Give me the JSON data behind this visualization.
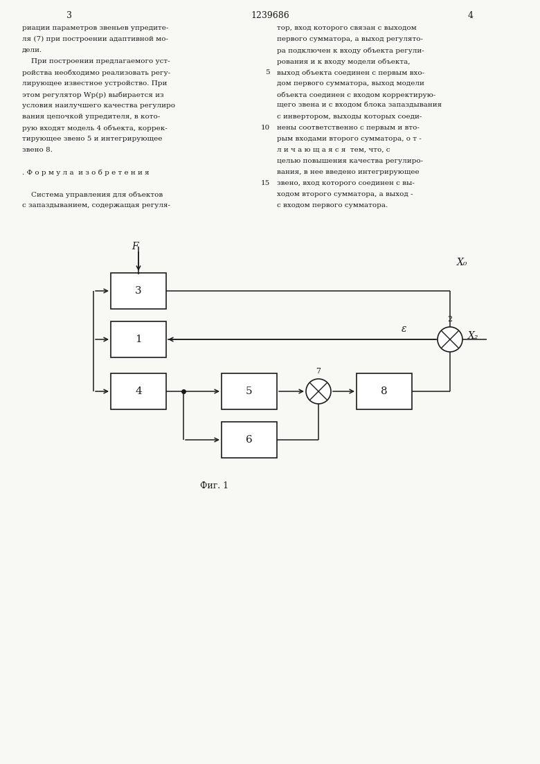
{
  "page_number_left": "3",
  "page_number_center": "1239686",
  "page_number_right": "4",
  "text_left": [
    "риации параметров звеньев упредите-",
    "ля (7) при построении адаптивной мо-",
    "дели.",
    "    При построении предлагаемого уст-",
    "ройства необходимо реализовать регу-",
    "лирующее известное устройство. При",
    "этом регулятор Wр(р) выбирается из",
    "условия наилучшего качества регулиро",
    "вания цепочкой упредителя, в кото-",
    "рую входят модель 4 объекта, коррек-",
    "тирующее звено 5 и интегрирующее",
    "звено 8.",
    "",
    ". Ф о р м у л а  и з о б р е т е н и я",
    "",
    "    Система управления для объектов",
    "с запаздыванием, содержащая регуля-"
  ],
  "text_right": [
    "тор, вход которого связан с выходом",
    "первого сумматора, а выход регулято-",
    "ра подключен к входу объекта регули-",
    "рования и к входу модели объекта,",
    "выход объекта соединен с первым вхо-",
    "дом первого сумматора, выход модели",
    "объекта соединен с входом корректирую-",
    "щего звена и с входом блока запаздывания",
    "с инвертором, выходы которых соеди-",
    "нены соответственно с первым и вто-",
    "рым входами второго сумматора, о т -",
    "л и ч а ю щ а я с я  тем, что, с",
    "целью повышения качества регулиро-",
    "вания, в нее введено интегрирующее",
    "звено, вход которого соединен с вы-",
    "ходом второго сумматора, а выход -",
    "с входом первого сумматора."
  ],
  "background_color": "#f8f8f4",
  "text_color": "#1a1a1a",
  "line_color": "#1a1a1a"
}
